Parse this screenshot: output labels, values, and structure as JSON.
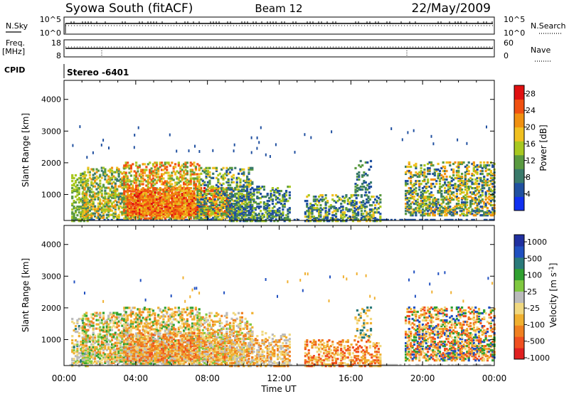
{
  "header": {
    "station": "Syowa South (fitACF)",
    "beam": "Beam 12",
    "date": "22/May/2009"
  },
  "nsky_panel": {
    "label": "N.Sky",
    "left_ticks": [
      "10^5",
      "10^0"
    ],
    "right_ticks": [
      "10^5",
      "10^0"
    ],
    "right_label": "N.Search"
  },
  "freq_panel": {
    "label_line1": "Freq.",
    "label_line2": "[MHz]",
    "left_ticks": [
      "18",
      "8"
    ],
    "right_ticks": [
      "60",
      "0"
    ],
    "right_label": "Nave"
  },
  "cpid": {
    "label": "CPID",
    "value": "Stereo -6401"
  },
  "chart_data": [
    {
      "type": "heatmap",
      "quantity": "Power",
      "ylabel": "Slant Range [km]",
      "xlabel": "Time UT",
      "x_ticks": [
        "00:00",
        "04:00",
        "08:00",
        "12:00",
        "16:00",
        "20:00",
        "00:00"
      ],
      "xlim_hours": [
        0,
        24
      ],
      "y_ticks": [
        1000,
        2000,
        3000,
        4000
      ],
      "ylim": [
        180,
        4600
      ],
      "colorbar": {
        "label": "Power [dB]",
        "ticks": [
          4,
          8,
          12,
          16,
          20,
          24,
          28
        ],
        "range": [
          0,
          30
        ],
        "colors": [
          "#1030f0",
          "#2050a0",
          "#3a7a6a",
          "#5a9a40",
          "#a8c820",
          "#f0c020",
          "#f09010",
          "#f05010",
          "#e01010"
        ]
      },
      "regions": [
        {
          "t0": 0.4,
          "t1": 1.3,
          "r0": 200,
          "r1": 1700,
          "dens": 0.55,
          "c": [
            3,
            3,
            4,
            4
          ]
        },
        {
          "t0": 1.0,
          "t1": 3.5,
          "r0": 300,
          "r1": 1900,
          "dens": 0.65,
          "c": [
            2,
            3,
            4,
            5,
            6
          ]
        },
        {
          "t0": 3.3,
          "t1": 7.5,
          "r0": 280,
          "r1": 2050,
          "dens": 0.72,
          "c": [
            3,
            4,
            5,
            6,
            7,
            7
          ]
        },
        {
          "t0": 3.5,
          "t1": 9.3,
          "r0": 380,
          "r1": 1280,
          "dens": 0.85,
          "c": [
            5,
            6,
            7,
            7,
            8,
            6
          ]
        },
        {
          "t0": 7.4,
          "t1": 10.5,
          "r0": 250,
          "r1": 1900,
          "dens": 0.55,
          "c": [
            1,
            2,
            3,
            4,
            5
          ]
        },
        {
          "t0": 9.2,
          "t1": 12.6,
          "r0": 200,
          "r1": 1300,
          "dens": 0.55,
          "c": [
            1,
            1,
            2,
            3,
            4
          ]
        },
        {
          "t0": 13.4,
          "t1": 17.6,
          "r0": 200,
          "r1": 1050,
          "dens": 0.5,
          "c": [
            1,
            1,
            2,
            3,
            4,
            5
          ]
        },
        {
          "t0": 16.2,
          "t1": 17.1,
          "r0": 1100,
          "r1": 2100,
          "dens": 0.3,
          "c": [
            1,
            2,
            3
          ]
        },
        {
          "t0": 19.0,
          "t1": 24.0,
          "r0": 380,
          "r1": 2050,
          "dens": 0.6,
          "c": [
            1,
            2,
            3,
            4,
            5,
            6
          ]
        }
      ]
    },
    {
      "type": "heatmap",
      "quantity": "Velocity",
      "ylabel": "Slant Range [km]",
      "xlabel": "Time UT",
      "x_ticks": [
        "00:00",
        "04:00",
        "08:00",
        "12:00",
        "16:00",
        "20:00",
        "00:00"
      ],
      "xlim_hours": [
        0,
        24
      ],
      "y_ticks": [
        1000,
        2000,
        3000,
        4000
      ],
      "ylim": [
        180,
        4600
      ],
      "colorbar": {
        "label": "Velocity [m s-1]",
        "ticks": [
          "1000",
          "500",
          "100",
          "25",
          "-25",
          "-100",
          "-500",
          "-1000"
        ],
        "range": [
          -1000,
          1000
        ],
        "colors": [
          "#e02020",
          "#f05020",
          "#f08020",
          "#f0b030",
          "#f0d880",
          "#bbbbbb",
          "#80c840",
          "#30a030",
          "#2a7a7a",
          "#2050c0",
          "#2030a0"
        ]
      },
      "regions": [
        {
          "t0": 0.4,
          "t1": 1.3,
          "r0": 200,
          "r1": 1700,
          "dens": 0.55,
          "c": [
            3,
            4,
            5,
            6,
            8
          ]
        },
        {
          "t0": 1.0,
          "t1": 3.5,
          "r0": 300,
          "r1": 1900,
          "dens": 0.65,
          "c": [
            2,
            3,
            4,
            5,
            6,
            7
          ]
        },
        {
          "t0": 3.3,
          "t1": 7.5,
          "r0": 280,
          "r1": 2050,
          "dens": 0.72,
          "c": [
            2,
            3,
            3,
            4,
            5,
            7
          ]
        },
        {
          "t0": 3.5,
          "t1": 9.3,
          "r0": 380,
          "r1": 1280,
          "dens": 0.85,
          "c": [
            1,
            2,
            2,
            3,
            4,
            5
          ]
        },
        {
          "t0": 7.4,
          "t1": 10.5,
          "r0": 250,
          "r1": 1900,
          "dens": 0.55,
          "c": [
            2,
            3,
            4,
            5,
            6
          ]
        },
        {
          "t0": 9.2,
          "t1": 12.6,
          "r0": 200,
          "r1": 1300,
          "dens": 0.55,
          "c": [
            2,
            3,
            4,
            5
          ]
        },
        {
          "t0": 13.4,
          "t1": 17.6,
          "r0": 200,
          "r1": 1050,
          "dens": 0.5,
          "c": [
            1,
            2,
            3,
            4
          ]
        },
        {
          "t0": 16.2,
          "t1": 17.1,
          "r0": 1100,
          "r1": 2100,
          "dens": 0.3,
          "c": [
            3,
            4,
            8
          ]
        },
        {
          "t0": 19.0,
          "t1": 24.0,
          "r0": 380,
          "r1": 2050,
          "dens": 0.6,
          "c": [
            1,
            2,
            3,
            4,
            7,
            9
          ]
        }
      ]
    }
  ]
}
